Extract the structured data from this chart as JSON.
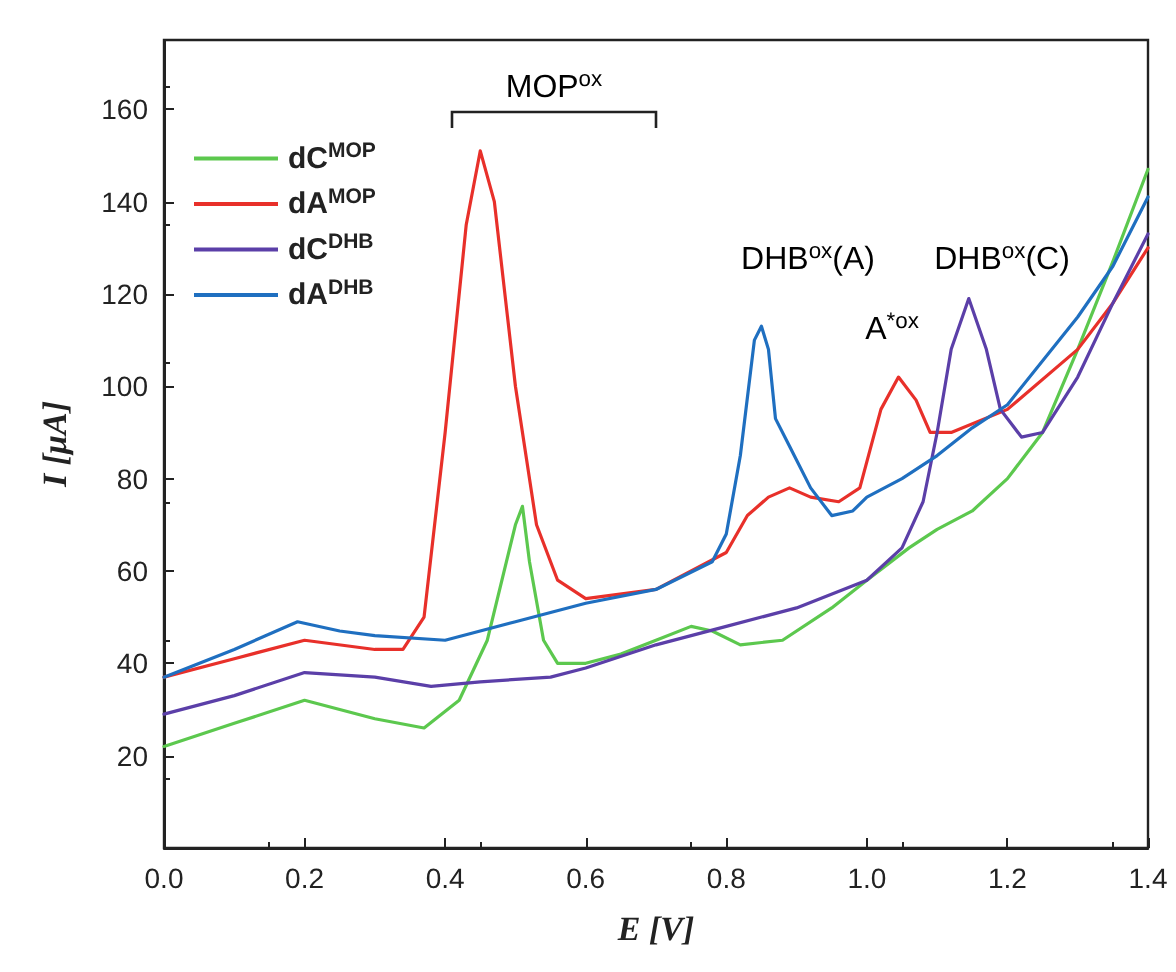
{
  "chart_data": {
    "type": "line",
    "xlabel": "E [V]",
    "ylabel": "I [μA]",
    "xlim": [
      0,
      1.4
    ],
    "xticks": [
      {
        "value": 0,
        "label": "0.0"
      },
      0.2,
      0.4,
      0.6,
      0.8,
      {
        "value": 1,
        "label": "1.0"
      },
      1.2,
      1.4
    ],
    "ylim": [
      0,
      175
    ],
    "yticks": [
      20,
      40,
      60,
      80,
      100,
      120,
      140,
      160
    ],
    "grid": false,
    "legend": "top left",
    "marker": "none",
    "line_style": "solid",
    "series": [
      {
        "name": "dC$^{MOP}$",
        "color": "#5cc84e",
        "x": [
          0,
          0.1,
          0.2,
          0.3,
          0.37,
          0.42,
          0.46,
          0.5,
          0.51,
          0.52,
          0.54,
          0.56,
          0.6,
          0.65,
          0.7,
          0.75,
          0.78,
          0.82,
          0.88,
          0.95,
          1.0,
          1.06,
          1.1,
          1.15,
          1.2,
          1.25,
          1.3,
          1.35,
          1.4
        ],
        "values": [
          22,
          27,
          32,
          28,
          26,
          32,
          45,
          70,
          74,
          62,
          45,
          40,
          40,
          42,
          45,
          48,
          47,
          44,
          45,
          52,
          58,
          65,
          69,
          73,
          80,
          90,
          108,
          127,
          147
        ]
      },
      {
        "name": "dA$^{MOP}$",
        "color": "#e8302a",
        "x": [
          0,
          0.1,
          0.2,
          0.3,
          0.34,
          0.37,
          0.4,
          0.43,
          0.45,
          0.47,
          0.5,
          0.53,
          0.56,
          0.6,
          0.7,
          0.8,
          0.83,
          0.86,
          0.89,
          0.92,
          0.96,
          0.99,
          1.02,
          1.045,
          1.07,
          1.09,
          1.12,
          1.2,
          1.3,
          1.35,
          1.4
        ],
        "values": [
          37,
          41,
          45,
          43,
          43,
          50,
          90,
          135,
          151,
          140,
          100,
          70,
          58,
          54,
          56,
          64,
          72,
          76,
          78,
          76,
          75,
          78,
          95,
          102,
          97,
          90,
          90,
          95,
          108,
          118,
          130
        ]
      },
      {
        "name": "dC$^{DHB}$",
        "color": "#5b3fa8",
        "x": [
          0,
          0.1,
          0.2,
          0.3,
          0.38,
          0.45,
          0.55,
          0.6,
          0.7,
          0.8,
          0.9,
          1.0,
          1.05,
          1.08,
          1.1,
          1.12,
          1.145,
          1.17,
          1.19,
          1.22,
          1.25,
          1.3,
          1.35,
          1.4
        ],
        "values": [
          29,
          33,
          38,
          37,
          35,
          36,
          37,
          39,
          44,
          48,
          52,
          58,
          65,
          75,
          90,
          108,
          119,
          108,
          95,
          89,
          90,
          102,
          118,
          133
        ]
      },
      {
        "name": "dA$^{DHB}$",
        "color": "#1f6fc0",
        "x": [
          0,
          0.1,
          0.19,
          0.25,
          0.3,
          0.4,
          0.5,
          0.6,
          0.7,
          0.78,
          0.8,
          0.82,
          0.84,
          0.85,
          0.86,
          0.87,
          0.89,
          0.92,
          0.95,
          0.98,
          1.0,
          1.05,
          1.1,
          1.15,
          1.2,
          1.3,
          1.35,
          1.4
        ],
        "values": [
          37,
          43,
          49,
          47,
          46,
          45,
          49,
          53,
          56,
          62,
          68,
          85,
          110,
          113,
          108,
          93,
          87,
          78,
          72,
          73,
          76,
          80,
          85,
          91,
          96,
          115,
          126,
          141
        ]
      }
    ],
    "annotations": [
      "MOP$^{ox}$",
      "DHB$^{ox}$(A)",
      "A$^{*ox}$",
      "DHB$^{ox}$(C)"
    ]
  }
}
